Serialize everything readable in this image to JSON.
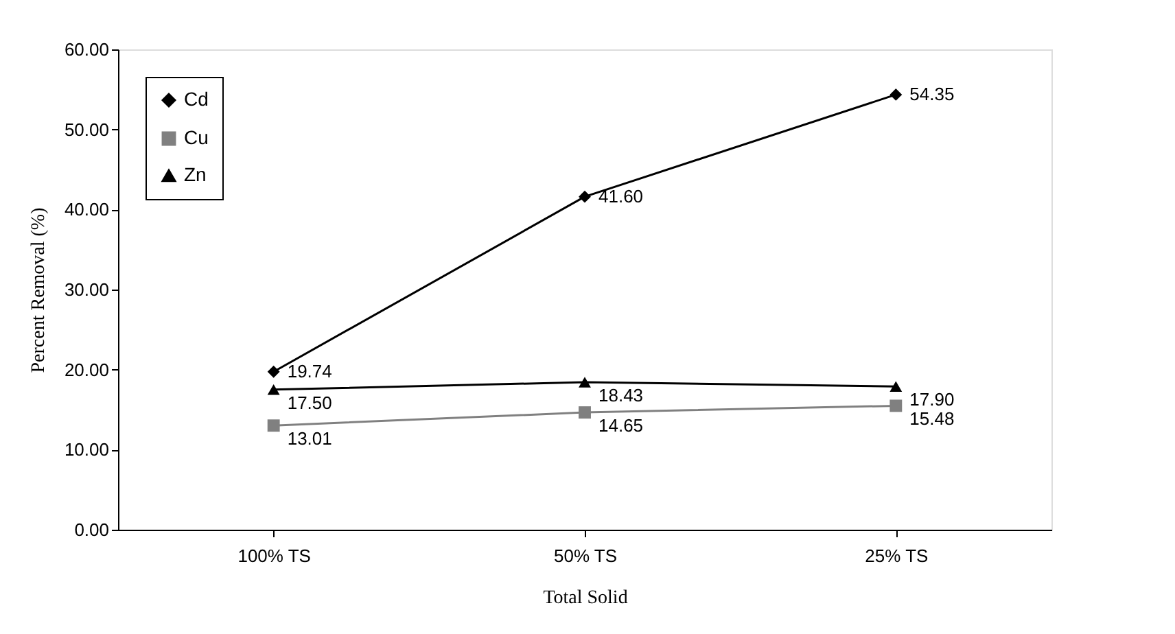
{
  "chart_data": {
    "type": "line",
    "xlabel": "Total Solid",
    "ylabel": "Percent Removal (%)",
    "categories": [
      "100% TS",
      "50% TS",
      "25% TS"
    ],
    "ylim": [
      0,
      60
    ],
    "yticks": [
      {
        "value": 0,
        "label": "0.00"
      },
      {
        "value": 10,
        "label": "10.00"
      },
      {
        "value": 20,
        "label": "20.00"
      },
      {
        "value": 30,
        "label": "30.00"
      },
      {
        "value": 40,
        "label": "40.00"
      },
      {
        "value": 50,
        "label": "50.00"
      },
      {
        "value": 60,
        "label": "60.00"
      }
    ],
    "series": [
      {
        "name": "Cd",
        "color": "#000000",
        "marker": "diamond",
        "values": [
          19.74,
          41.6,
          54.35
        ],
        "value_labels": [
          "19.74",
          "41.60",
          "54.35"
        ]
      },
      {
        "name": "Cu",
        "color": "#808080",
        "marker": "square",
        "values": [
          13.01,
          14.65,
          15.48
        ],
        "value_labels": [
          "13.01",
          "14.65",
          "15.48"
        ]
      },
      {
        "name": "Zn",
        "color": "#000000",
        "marker": "triangle",
        "values": [
          17.5,
          18.43,
          17.9
        ],
        "value_labels": [
          "17.50",
          "18.43",
          "17.90"
        ]
      }
    ],
    "grid": false,
    "legend": "top left",
    "line_style": "solid"
  }
}
